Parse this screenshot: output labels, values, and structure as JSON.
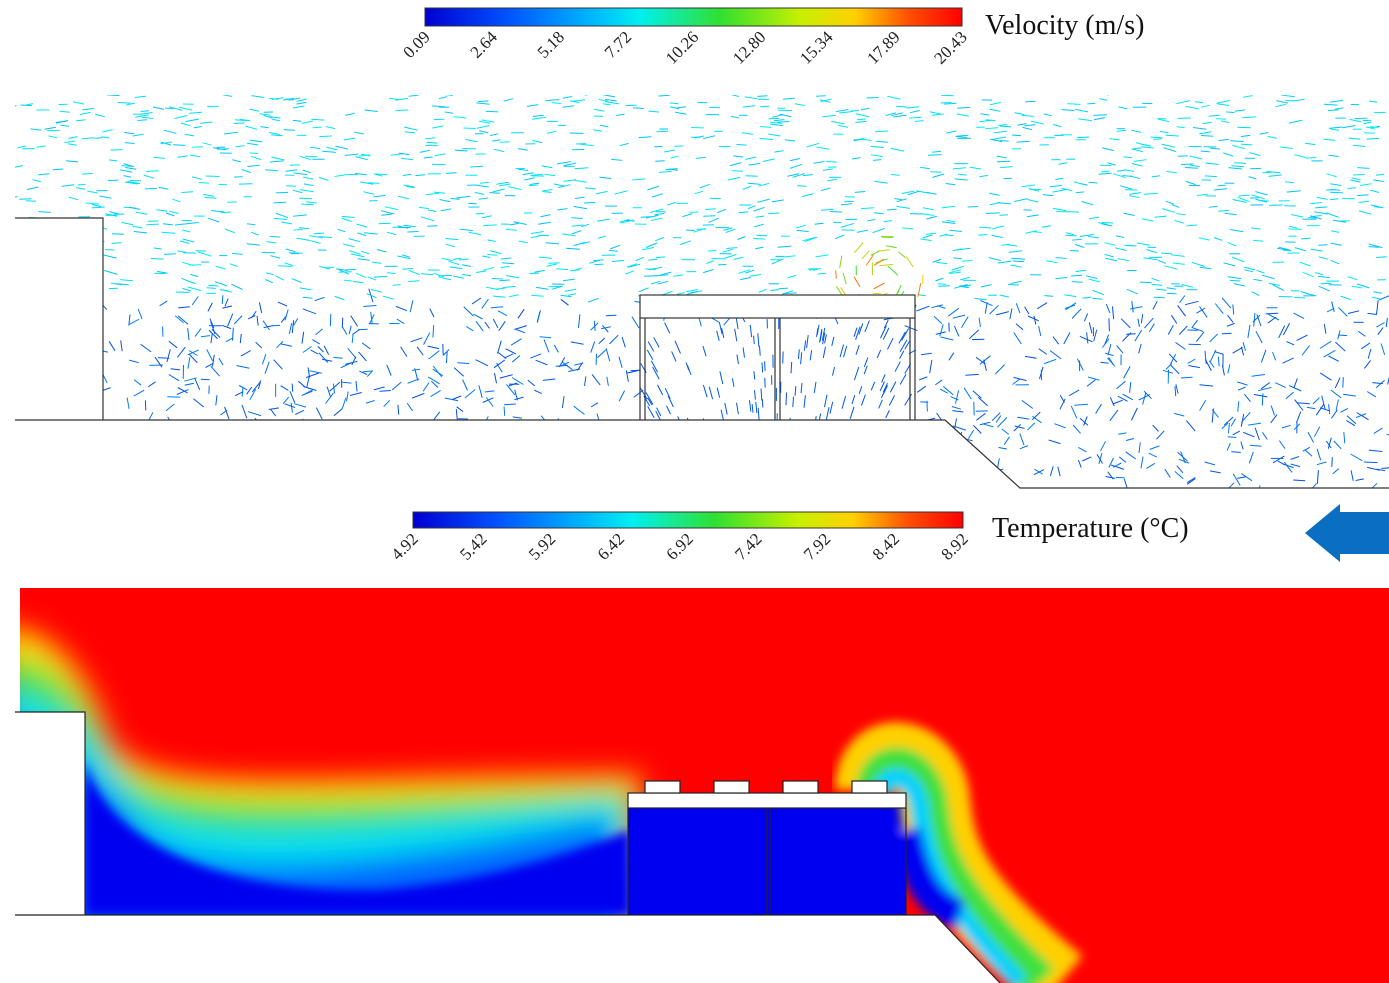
{
  "velocity_legend": {
    "title": "Velocity (m/s)",
    "ticks": [
      "0.09",
      "2.64",
      "5.18",
      "7.72",
      "10.26",
      "12.80",
      "15.34",
      "17.89",
      "20.43"
    ]
  },
  "temperature_legend": {
    "title": "Temperature (°C)",
    "ticks": [
      "4.92",
      "5.42",
      "5.92",
      "6.42",
      "6.92",
      "7.42",
      "7.92",
      "8.42",
      "8.92"
    ]
  }
}
